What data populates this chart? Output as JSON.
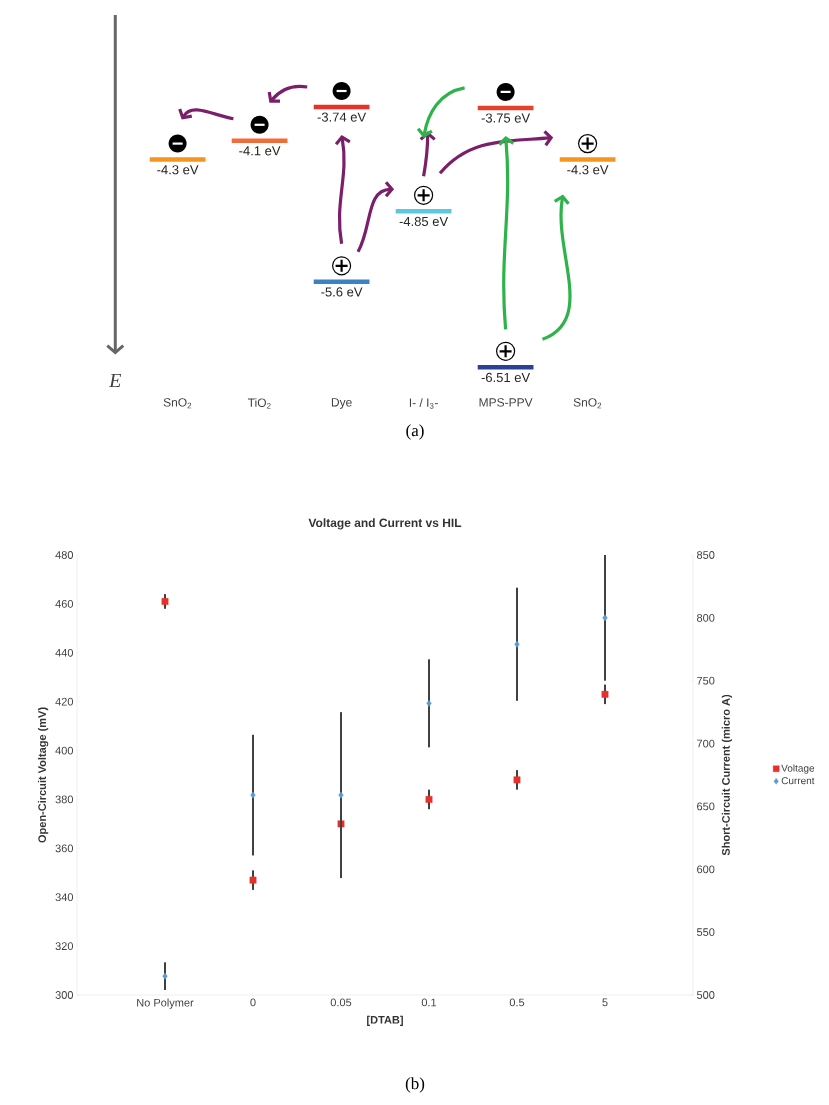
{
  "chart_data": [
    {
      "type": "other",
      "ylabel": "E",
      "categories": [
        "SnO$_{2}$",
        "TiO$_{2}$",
        "Dye",
        "I- / I$_{3}$-",
        "MPS-PPV",
        "SnO$_{2}$"
      ],
      "series": [
        {
          "values": [
            -4.3,
            -4.1,
            -3.74,
            null,
            -3.75,
            null
          ],
          "colors": [
            "#f7941d",
            "#f26b3a",
            "#e8312a",
            null,
            "#e8412a",
            null
          ],
          "value_labels": [
            "-4.3 eV",
            "-4.1 eV",
            "-3.74 eV",
            null,
            "-3.75 eV",
            null
          ]
        },
        {
          "values": [
            null,
            null,
            -5.6,
            -4.85,
            -6.51,
            -4.3
          ],
          "colors": [
            null,
            null,
            "#3b82c4",
            "#5bc8dc",
            "#2e3f99",
            "#f7941d"
          ],
          "value_labels": [
            null,
            null,
            "-5.6 eV",
            "-4.85 eV",
            "-6.51 eV",
            "-4.3 eV"
          ]
        }
      ],
      "annotations": [
        "(a)"
      ]
    },
    {
      "type": "scatter",
      "title": "Voltage and Current vs HIL",
      "xlabel": "[DTAB]",
      "ylabel": "Open-Circuit Voltage (mV)",
      "y2label": "Short-Circuit Current (micro A)",
      "categories": [
        "No Polymer",
        "0",
        "0.05",
        "0.1",
        "0.5",
        "5"
      ],
      "series": [
        {
          "name": "Voltage",
          "color": "#e8302a",
          "marker": "square",
          "values": [
            461,
            347,
            370,
            380,
            388,
            423
          ],
          "errors": [
            3,
            4,
            null,
            4,
            4,
            4
          ]
        },
        {
          "name": "Current",
          "color": "#5b9bd5",
          "marker": "diamond",
          "axis": "y2",
          "values": [
            515,
            659,
            659,
            732,
            779,
            800
          ],
          "errors": [
            11,
            48,
            66,
            35,
            45,
            50
          ]
        }
      ],
      "ylim": [
        300,
        480
      ],
      "yticks": [
        300,
        320,
        340,
        360,
        380,
        400,
        420,
        440,
        460,
        480
      ],
      "y2lim": [
        500,
        850
      ],
      "y2ticks": [
        500,
        550,
        600,
        650,
        700,
        750,
        800,
        850
      ],
      "legend": "right",
      "annotations": [
        "(b)"
      ]
    }
  ]
}
